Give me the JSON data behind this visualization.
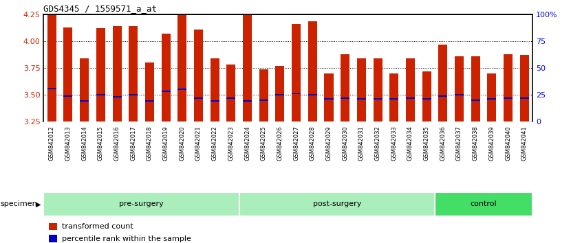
{
  "title": "GDS4345 / 1559571_a_at",
  "samples": [
    "GSM842012",
    "GSM842013",
    "GSM842014",
    "GSM842015",
    "GSM842016",
    "GSM842017",
    "GSM842018",
    "GSM842019",
    "GSM842020",
    "GSM842021",
    "GSM842022",
    "GSM842023",
    "GSM842024",
    "GSM842025",
    "GSM842026",
    "GSM842027",
    "GSM842028",
    "GSM842029",
    "GSM842030",
    "GSM842031",
    "GSM842032",
    "GSM842033",
    "GSM842034",
    "GSM842035",
    "GSM842036",
    "GSM842037",
    "GSM842038",
    "GSM842039",
    "GSM842040",
    "GSM842041"
  ],
  "transformed_count": [
    4.25,
    4.13,
    3.84,
    4.12,
    4.14,
    4.14,
    3.8,
    4.07,
    4.25,
    4.11,
    3.84,
    3.78,
    4.245,
    3.74,
    3.77,
    4.16,
    4.19,
    3.7,
    3.88,
    3.84,
    3.84,
    3.7,
    3.84,
    3.72,
    3.97,
    3.86,
    3.86,
    3.7,
    3.88,
    3.87
  ],
  "percentile_rank": [
    3.56,
    3.49,
    3.44,
    3.5,
    3.48,
    3.5,
    3.44,
    3.53,
    3.55,
    3.47,
    3.44,
    3.47,
    3.44,
    3.45,
    3.5,
    3.51,
    3.5,
    3.46,
    3.47,
    3.46,
    3.46,
    3.46,
    3.47,
    3.46,
    3.49,
    3.5,
    3.45,
    3.46,
    3.47,
    3.47
  ],
  "groups": [
    {
      "name": "pre-surgery",
      "start": 0,
      "end": 12,
      "color": "#AAEEBB"
    },
    {
      "name": "post-surgery",
      "start": 12,
      "end": 24,
      "color": "#AAEEBB"
    },
    {
      "name": "control",
      "start": 24,
      "end": 30,
      "color": "#44DD66"
    }
  ],
  "ymin": 3.25,
  "ymax": 4.25,
  "yticks": [
    3.25,
    3.5,
    3.75,
    4.0,
    4.25
  ],
  "right_yticks_pct": [
    0,
    25,
    50,
    75,
    100
  ],
  "right_ytick_labels": [
    "0",
    "25",
    "50",
    "75",
    "100%"
  ],
  "bar_color": "#CC2200",
  "percentile_color": "#0000CC",
  "bar_width": 0.55,
  "xticklabel_bg": "#CCCCCC",
  "background_color": "#ffffff",
  "grid_color": "#000000",
  "legend_items": [
    {
      "label": "transformed count",
      "color": "#CC2200"
    },
    {
      "label": "percentile rank within the sample",
      "color": "#0000CC"
    }
  ]
}
